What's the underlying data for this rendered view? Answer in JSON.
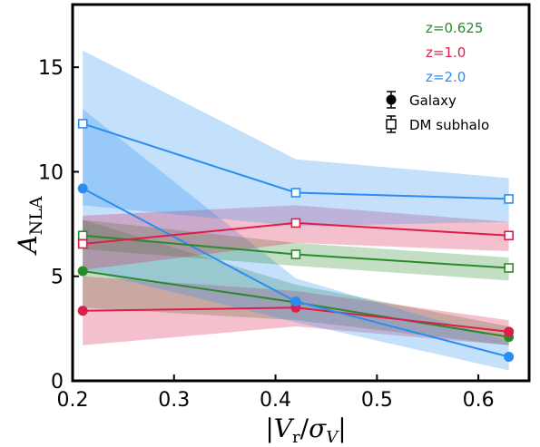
{
  "chart_data": {
    "type": "line",
    "xlabel": "|V_r/σ_V|",
    "ylabel": "A_NLA",
    "xlim": [
      0.2,
      0.65
    ],
    "ylim": [
      0,
      18
    ],
    "xticks": [
      0.2,
      0.3,
      0.4,
      0.5,
      0.6
    ],
    "yticks": [
      0,
      5,
      10,
      15
    ],
    "x": [
      0.21,
      0.42,
      0.63
    ],
    "legend": {
      "placement": "top-right",
      "redshift_labels": [
        "z=0.625",
        "z=1.0",
        "z=2.0"
      ],
      "marker_labels": [
        "Galaxy",
        "DM subhalo"
      ]
    },
    "series": [
      {
        "name": "z=0.625",
        "kind": "Galaxy",
        "marker": "filled-circle",
        "color": "#2a8a2a",
        "values": [
          5.25,
          3.75,
          2.1
        ],
        "band_low": [
          3.5,
          2.9,
          1.7
        ],
        "band_high": [
          7.7,
          4.6,
          2.6
        ]
      },
      {
        "name": "z=1.0",
        "kind": "Galaxy",
        "marker": "filled-circle",
        "color": "#dc1e4a",
        "values": [
          3.35,
          3.5,
          2.35
        ],
        "band_low": [
          1.7,
          2.6,
          1.7
        ],
        "band_high": [
          5.0,
          4.3,
          2.9
        ]
      },
      {
        "name": "z=2.0",
        "kind": "Galaxy",
        "marker": "filled-circle",
        "color": "#2a8ef0",
        "values": [
          9.2,
          3.8,
          1.15
        ],
        "band_low": [
          5.3,
          2.8,
          0.5
        ],
        "band_high": [
          13.0,
          4.9,
          1.9
        ]
      },
      {
        "name": "z=0.625",
        "kind": "DM subhalo",
        "marker": "open-square",
        "color": "#2a8a2a",
        "values": [
          6.95,
          6.05,
          5.4
        ],
        "band_low": [
          6.3,
          5.5,
          4.8
        ],
        "band_high": [
          7.7,
          6.6,
          5.9
        ]
      },
      {
        "name": "z=1.0",
        "kind": "DM subhalo",
        "marker": "open-square",
        "color": "#dc1e4a",
        "values": [
          6.55,
          7.55,
          6.95
        ],
        "band_low": [
          5.3,
          6.6,
          6.2
        ],
        "band_high": [
          7.9,
          8.4,
          7.6
        ]
      },
      {
        "name": "z=2.0",
        "kind": "DM subhalo",
        "marker": "open-square",
        "color": "#2a8ef0",
        "values": [
          12.3,
          9.0,
          8.7
        ],
        "band_low": [
          8.4,
          7.4,
          7.6
        ],
        "band_high": [
          15.8,
          10.6,
          9.7
        ]
      }
    ]
  }
}
